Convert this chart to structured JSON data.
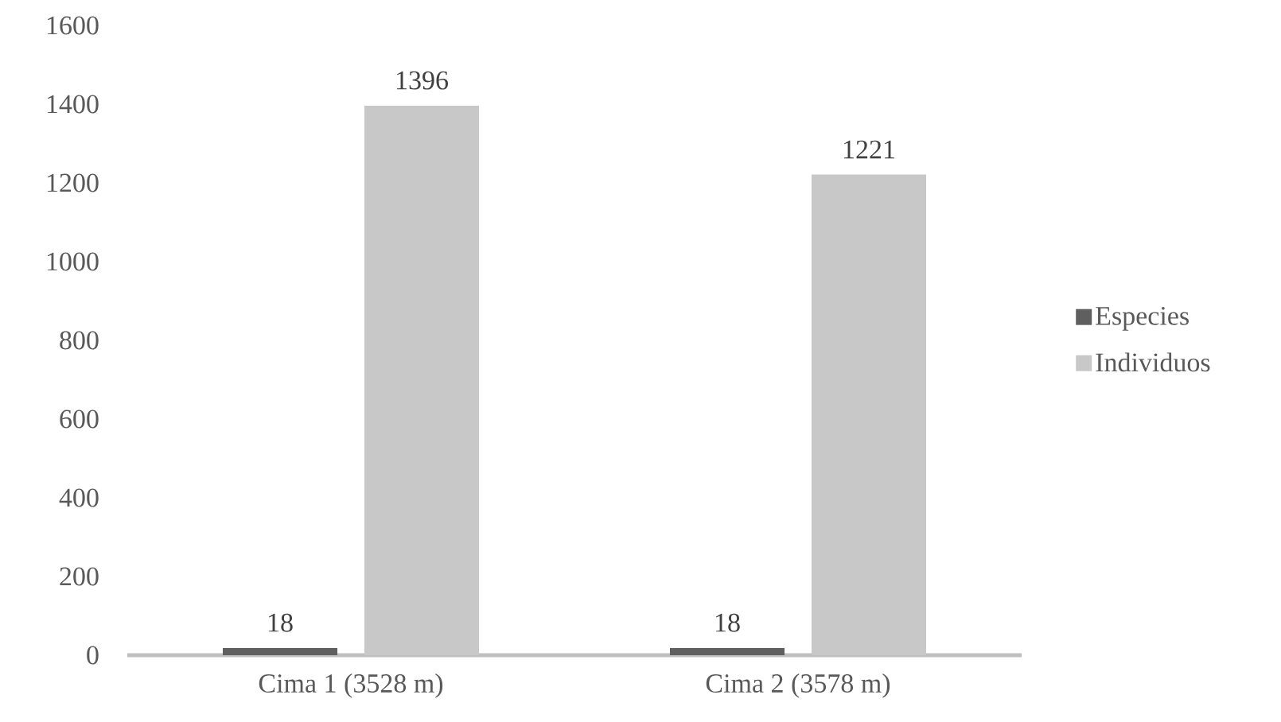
{
  "chart_data": {
    "type": "bar",
    "categories": [
      "Cima 1 (3528 m)",
      "Cima 2 (3578 m)"
    ],
    "series": [
      {
        "name": "Especies",
        "color": "#5f5f5f",
        "values": [
          18,
          18
        ]
      },
      {
        "name": "Individuos",
        "color": "#c8c8c8",
        "values": [
          1396,
          1221
        ]
      }
    ],
    "ylim": [
      0,
      1600
    ],
    "yticks": [
      0,
      200,
      400,
      600,
      800,
      1000,
      1200,
      1400,
      1600
    ],
    "data_labels": true,
    "legend": "right"
  }
}
